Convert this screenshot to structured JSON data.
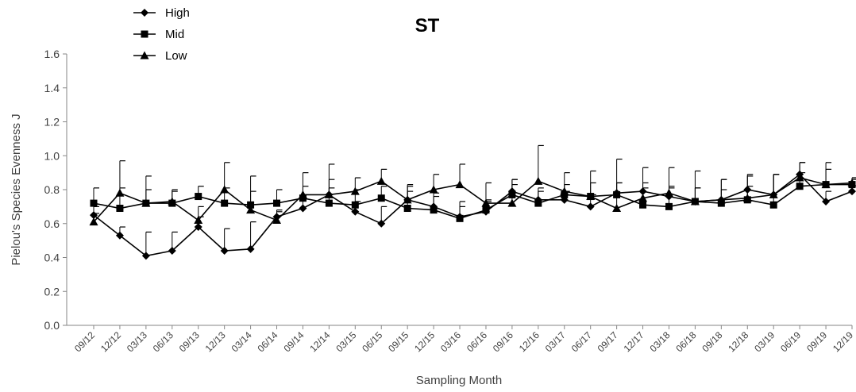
{
  "chart_data": {
    "type": "line",
    "title": "ST",
    "xlabel": "Sampling Month",
    "ylabel": "Pielou's  Species  Evenness J",
    "ylim": [
      0.0,
      1.6
    ],
    "yticks": [
      "0.0",
      "0.2",
      "0.4",
      "0.6",
      "0.8",
      "1.0",
      "1.2",
      "1.4",
      "1.6"
    ],
    "grid": false,
    "legend_position": "top-left",
    "categories": [
      "09/12",
      "12/12",
      "03/13",
      "06/13",
      "09/13",
      "12/13",
      "03/14",
      "06/14",
      "09/14",
      "12/14",
      "03/15",
      "06/15",
      "09/15",
      "12/15",
      "03/16",
      "06/16",
      "09/16",
      "12/16",
      "03/17",
      "06/17",
      "09/17",
      "12/17",
      "03/18",
      "06/18",
      "09/18",
      "12/18",
      "03/19",
      "06/19",
      "09/19",
      "12/19"
    ],
    "series": [
      {
        "name": "High",
        "marker": "diamond",
        "values": [
          0.65,
          0.53,
          0.41,
          0.44,
          0.58,
          0.44,
          0.45,
          0.64,
          0.69,
          0.77,
          0.67,
          0.6,
          0.74,
          0.7,
          0.64,
          0.67,
          0.79,
          0.74,
          0.74,
          0.7,
          0.78,
          0.79,
          0.76,
          0.73,
          0.74,
          0.8,
          0.77,
          0.89,
          0.73,
          0.79
        ],
        "err": [
          0.05,
          0.05,
          0.14,
          0.11,
          0.06,
          0.13,
          0.16,
          0.04,
          0.08,
          0.09,
          0.06,
          0.1,
          0.05,
          0.06,
          0.09,
          0.06,
          0.07,
          0.07,
          0.05,
          0.07,
          0.06,
          0.05,
          0.06,
          0.08,
          0.06,
          0.09,
          0.12,
          0.07,
          0.06,
          0.07
        ]
      },
      {
        "name": "Mid",
        "marker": "square",
        "values": [
          0.72,
          0.69,
          0.72,
          0.72,
          0.76,
          0.72,
          0.71,
          0.72,
          0.75,
          0.72,
          0.71,
          0.75,
          0.69,
          0.68,
          0.63,
          0.68,
          0.77,
          0.72,
          0.77,
          0.76,
          0.77,
          0.71,
          0.7,
          0.73,
          0.72,
          0.74,
          0.71,
          0.82,
          0.83,
          0.83
        ],
        "err": [
          0.09,
          0.12,
          0.08,
          0.08,
          0.06,
          0.09,
          0.08,
          0.08,
          0.07,
          0.09,
          0.09,
          0.07,
          0.14,
          0.1,
          0.07,
          0.06,
          0.06,
          0.07,
          0.06,
          0.08,
          0.07,
          0.1,
          0.11,
          0.08,
          0.14,
          0.08,
          0.18,
          0.08,
          0.09,
          0.04
        ]
      },
      {
        "name": "Low",
        "marker": "triangle",
        "values": [
          0.61,
          0.78,
          0.72,
          0.73,
          0.62,
          0.8,
          0.68,
          0.62,
          0.77,
          0.77,
          0.79,
          0.85,
          0.74,
          0.8,
          0.83,
          0.72,
          0.72,
          0.85,
          0.79,
          0.76,
          0.69,
          0.75,
          0.78,
          0.73,
          0.74,
          0.75,
          0.77,
          0.87,
          0.83,
          0.84
        ],
        "err": [
          0.05,
          0.19,
          0.16,
          0.06,
          0.08,
          0.16,
          0.2,
          0.05,
          0.13,
          0.18,
          0.08,
          0.07,
          0.08,
          0.09,
          0.12,
          0.12,
          0.14,
          0.21,
          0.11,
          0.15,
          0.29,
          0.18,
          0.15,
          0.18,
          0.12,
          0.13,
          0.12,
          0.09,
          0.13,
          0.03
        ]
      }
    ]
  }
}
